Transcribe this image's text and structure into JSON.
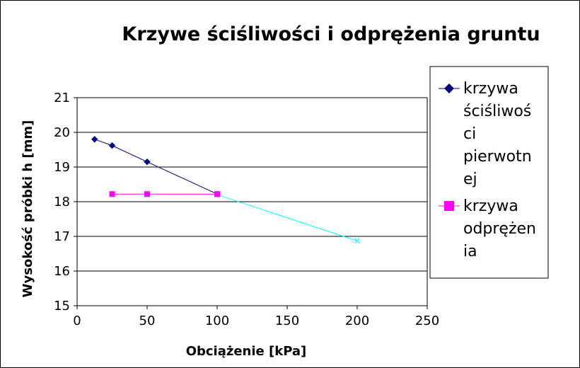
{
  "chart_data": {
    "type": "line",
    "title": "Krzywe ściśliwości i odprężenia gruntu",
    "xlabel": "Obciążenie [kPa]",
    "ylabel": "Wysokość próbki h [mm]",
    "xlim": [
      0,
      250
    ],
    "ylim": [
      15,
      21
    ],
    "xticks": [
      "0",
      "50",
      "100",
      "150",
      "200",
      "250"
    ],
    "yticks": [
      "15",
      "16",
      "17",
      "18",
      "19",
      "20",
      "21"
    ],
    "grid": "horizontal",
    "legend_position": "right",
    "series": [
      {
        "name_lines": [
          "krzywa",
          "ściśliwoś",
          "ci",
          "pierwotn",
          "ej"
        ],
        "color": "#000080",
        "marker": "diamond",
        "x": [
          12.5,
          25,
          50,
          100
        ],
        "y": [
          19.8,
          19.62,
          19.15,
          18.22
        ]
      },
      {
        "name_lines": [
          "krzywa",
          "odprężen",
          "ia"
        ],
        "color": "#ff00ff",
        "marker": "square",
        "x": [
          25,
          50,
          100
        ],
        "y": [
          18.22,
          18.22,
          18.22
        ]
      },
      {
        "color": "#00ffff",
        "marker": "x",
        "x": [
          100,
          200
        ],
        "y": [
          18.2,
          16.87
        ]
      }
    ]
  }
}
